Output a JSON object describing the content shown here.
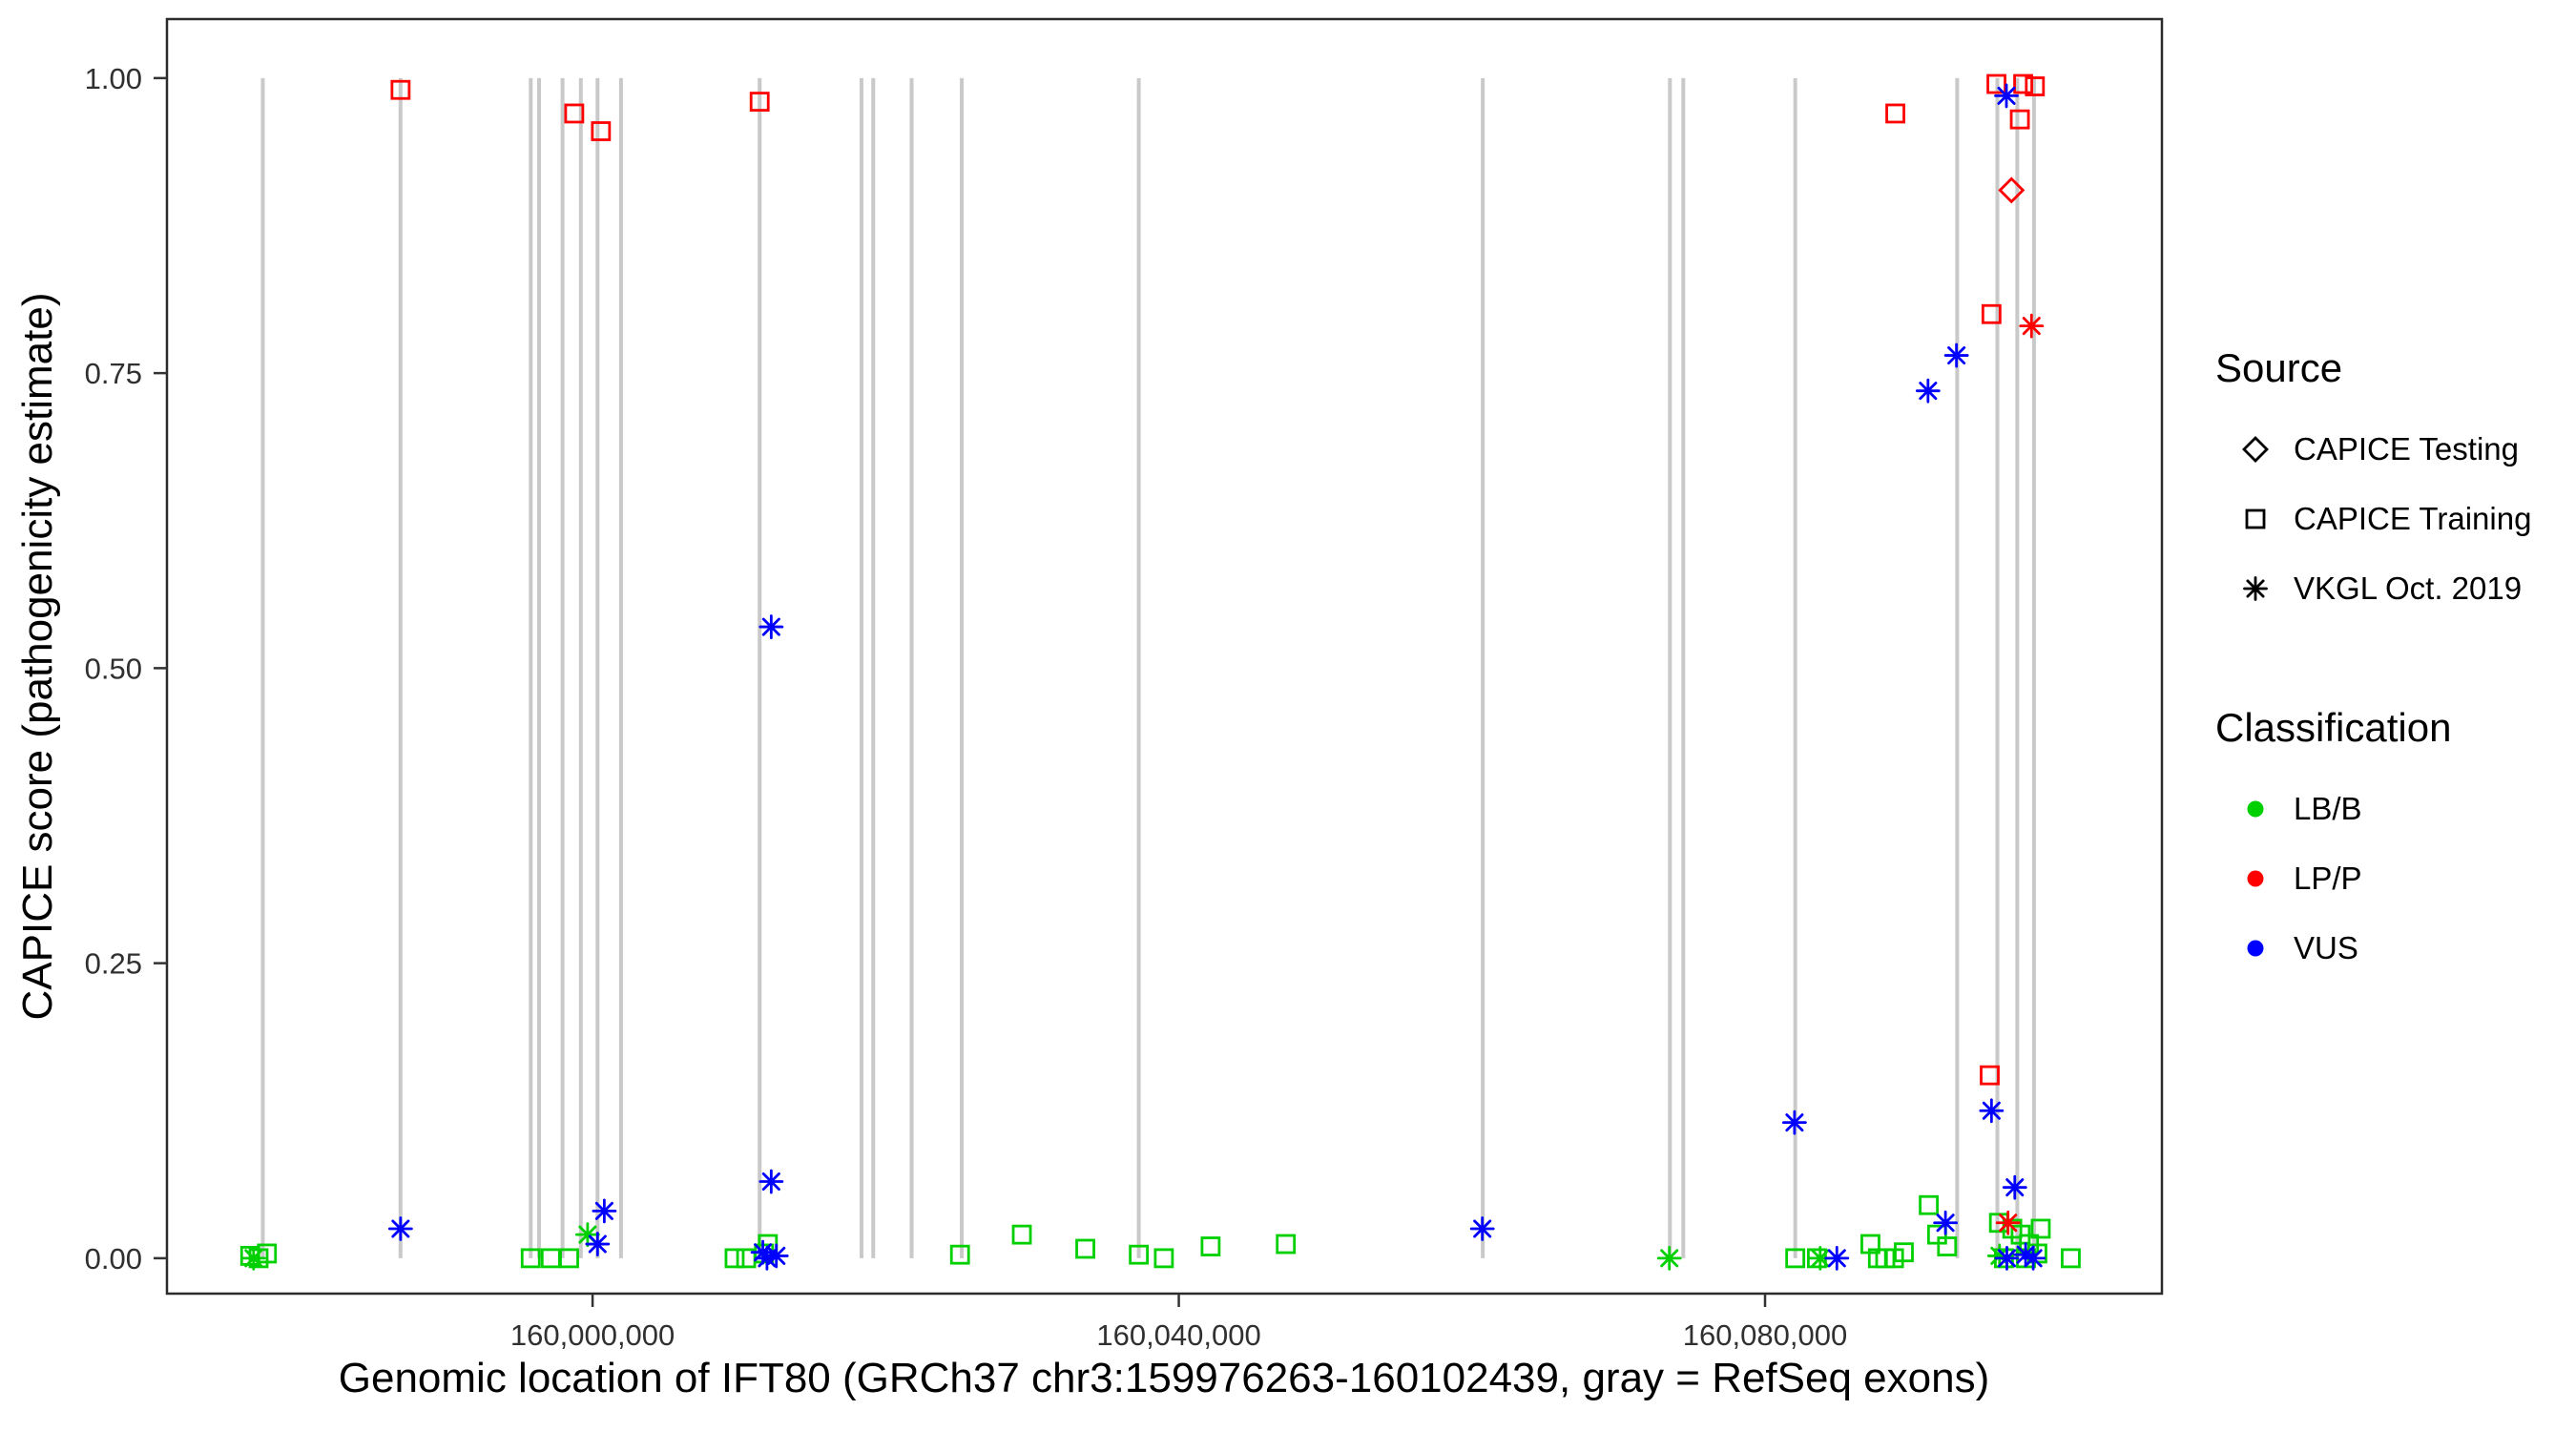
{
  "palette": {
    "green": "#00D000",
    "red": "#FF0000",
    "blue": "#0000FF",
    "black": "#000000",
    "exon_gray": "#C9C9C9",
    "tick_text": "#303030",
    "panel_border": "#2B2B2B"
  },
  "legend": {
    "source": {
      "title": "Source",
      "items": [
        {
          "label": "CAPICE Testing",
          "marker": "diamond-open",
          "color": "#000000"
        },
        {
          "label": "CAPICE Training",
          "marker": "square-open",
          "color": "#000000"
        },
        {
          "label": "VKGL Oct. 2019",
          "marker": "asterisk",
          "color": "#000000"
        }
      ]
    },
    "classification": {
      "title": "Classification",
      "items": [
        {
          "label": "LB/B",
          "marker": "circle-filled",
          "color": "#00D000"
        },
        {
          "label": "LP/P",
          "marker": "circle-filled",
          "color": "#FF0000"
        },
        {
          "label": "VUS",
          "marker": "circle-filled",
          "color": "#0000FF"
        }
      ]
    }
  },
  "chart_data": {
    "type": "scatter",
    "title": "",
    "xlabel": "Genomic location of IFT80 (GRCh37 chr3:159976263-160102439, gray = RefSeq exons)",
    "ylabel": "CAPICE score (pathogenicity estimate)",
    "xlim": [
      159970960,
      160107080
    ],
    "ylim": [
      -0.03,
      1.05
    ],
    "x_ticks": [
      {
        "value": 160000000,
        "label": "160,000,000"
      },
      {
        "value": 160040000,
        "label": "160,040,000"
      },
      {
        "value": 160080000,
        "label": "160,080,000"
      }
    ],
    "y_ticks": [
      {
        "value": 0.0,
        "label": "0.00"
      },
      {
        "value": 0.25,
        "label": "0.25"
      },
      {
        "value": 0.5,
        "label": "0.50"
      },
      {
        "value": 0.75,
        "label": "0.75"
      },
      {
        "value": 1.0,
        "label": "1.00"
      }
    ],
    "grid": false,
    "legend_position": "right",
    "exon_segment_y": [
      0,
      1
    ],
    "exons_x": [
      159977500,
      159986895,
      159995780,
      159996350,
      159997950,
      159999200,
      160000340,
      160001940,
      160011400,
      160018350,
      160019150,
      160021770,
      160025190,
      160037270,
      160060740,
      160073510,
      160074420,
      160082060,
      160093110,
      160095850,
      160097210,
      160098350
    ],
    "series": [
      {
        "source": "CAPICE Testing",
        "classification": "LP/P",
        "marker": "diamond-open",
        "color": "#FF0000",
        "points": [
          [
            160096815,
            0.905
          ]
        ]
      },
      {
        "source": "CAPICE Training",
        "classification": "LP/P",
        "marker": "square-open",
        "color": "#FF0000",
        "points": [
          [
            159986900,
            0.99
          ],
          [
            159998750,
            0.97
          ],
          [
            160000570,
            0.955
          ],
          [
            160011400,
            0.98
          ],
          [
            160088890,
            0.97
          ],
          [
            160095790,
            0.995
          ],
          [
            160097613,
            0.995
          ],
          [
            160098410,
            0.993
          ],
          [
            160097385,
            0.965
          ],
          [
            160095450,
            0.8
          ],
          [
            160095330,
            0.155
          ]
        ]
      },
      {
        "source": "CAPICE Training",
        "classification": "LB/B",
        "marker": "square-open",
        "color": "#00D000",
        "points": [
          [
            159976640,
            0.002
          ],
          [
            159977210,
            0.0
          ],
          [
            159977780,
            0.004
          ],
          [
            159995780,
            0.0
          ],
          [
            159997150,
            0.0
          ],
          [
            159998400,
            0.0
          ],
          [
            160009690,
            0.0
          ],
          [
            160010480,
            0.0
          ],
          [
            160011700,
            0.004
          ],
          [
            160011960,
            0.012
          ],
          [
            160025070,
            0.003
          ],
          [
            160029290,
            0.02
          ],
          [
            160033620,
            0.008
          ],
          [
            160037270,
            0.003
          ],
          [
            160038980,
            0.0
          ],
          [
            160042170,
            0.01
          ],
          [
            160047300,
            0.012
          ],
          [
            160082060,
            0.0
          ],
          [
            160083540,
            0.0
          ],
          [
            160087190,
            0.012
          ],
          [
            160087700,
            0.0
          ],
          [
            160088200,
            0.0
          ],
          [
            160088800,
            0.0
          ],
          [
            160089470,
            0.005
          ],
          [
            160091170,
            0.045
          ],
          [
            160091740,
            0.02
          ],
          [
            160092420,
            0.01
          ],
          [
            160095960,
            0.03
          ],
          [
            160096300,
            0.0
          ],
          [
            160096870,
            0.025
          ],
          [
            160097440,
            0.02
          ],
          [
            160097800,
            0.0
          ],
          [
            160098010,
            0.012
          ],
          [
            160098580,
            0.004
          ],
          [
            160098810,
            0.025
          ],
          [
            160100860,
            0.0
          ]
        ]
      },
      {
        "source": "VKGL Oct. 2019",
        "classification": "LB/B",
        "marker": "asterisk",
        "color": "#00D000",
        "points": [
          [
            159976870,
            0.0
          ],
          [
            159999660,
            0.02
          ],
          [
            160073470,
            0.0
          ],
          [
            160083760,
            0.0
          ],
          [
            160096000,
            0.002
          ]
        ]
      },
      {
        "source": "VKGL Oct. 2019",
        "classification": "LP/P",
        "marker": "asterisk",
        "color": "#FF0000",
        "points": [
          [
            160096580,
            0.03
          ],
          [
            160098180,
            0.79
          ]
        ]
      },
      {
        "source": "VKGL Oct. 2019",
        "classification": "VUS",
        "marker": "asterisk",
        "color": "#0000FF",
        "points": [
          [
            159986900,
            0.025
          ],
          [
            160000340,
            0.012
          ],
          [
            160000800,
            0.04
          ],
          [
            160011620,
            0.005
          ],
          [
            160011900,
            0.0
          ],
          [
            160012190,
            0.535
          ],
          [
            160012190,
            0.065
          ],
          [
            160012540,
            0.002
          ],
          [
            160060710,
            0.025
          ],
          [
            160082010,
            0.115
          ],
          [
            160084900,
            0.0
          ],
          [
            160091120,
            0.735
          ],
          [
            160092310,
            0.03
          ],
          [
            160093060,
            0.765
          ],
          [
            160095450,
            0.125
          ],
          [
            160096470,
            0.985
          ],
          [
            160096500,
            0.0
          ],
          [
            160097040,
            0.06
          ],
          [
            160097780,
            0.003
          ],
          [
            160098300,
            0.0
          ]
        ]
      }
    ]
  }
}
